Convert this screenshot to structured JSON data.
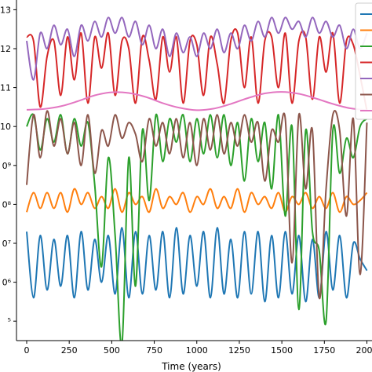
{
  "chart_data": {
    "type": "line",
    "xlabel": "Time (years)",
    "ylabel": "",
    "xlim": [
      -60,
      2030
    ],
    "ylim": [
      4.5,
      13.25
    ],
    "yscale": "log10",
    "grid": false,
    "legend_placement": "top-right (clipped)",
    "x_ticks": [
      0,
      250,
      500,
      750,
      1000,
      1250,
      1500,
      1750,
      2000
    ],
    "x_tick_labels": [
      "0",
      "250",
      "500",
      "750",
      "1000",
      "1250",
      "1500",
      "1750",
      "2000"
    ],
    "y_ticks": [
      5,
      6,
      7,
      8,
      9,
      10,
      11,
      12,
      13
    ],
    "y_tick_labels": [
      "⁵",
      "0⁶",
      "0⁷",
      "0⁸",
      "0⁹",
      "10",
      "11",
      "12",
      "13"
    ],
    "series": [
      {
        "color": "#1f77b4",
        "x": [
          0,
          40,
          80,
          120,
          160,
          200,
          240,
          280,
          320,
          360,
          400,
          440,
          480,
          520,
          560,
          600,
          640,
          680,
          720,
          760,
          800,
          840,
          880,
          920,
          960,
          1000,
          1040,
          1080,
          1120,
          1160,
          1200,
          1240,
          1280,
          1320,
          1360,
          1400,
          1440,
          1480,
          1520,
          1560,
          1600,
          1640,
          1680,
          1720,
          1760,
          1800,
          1840,
          1880,
          1920,
          1960,
          2000
        ],
        "values": [
          7.3,
          5.6,
          7.2,
          5.8,
          7.1,
          5.9,
          7.2,
          5.6,
          7.3,
          5.8,
          7.1,
          6.0,
          7.2,
          5.7,
          7.4,
          5.6,
          7.3,
          5.7,
          7.2,
          5.8,
          7.3,
          5.6,
          7.4,
          5.7,
          7.2,
          5.9,
          7.3,
          5.6,
          7.4,
          5.7,
          7.1,
          5.6,
          7.3,
          5.7,
          7.3,
          5.5,
          7.2,
          5.6,
          7.3,
          5.7,
          7.2,
          5.5,
          7.1,
          5.6,
          7.3,
          5.8,
          7.2,
          5.6,
          7.0,
          6.6,
          6.3
        ]
      },
      {
        "color": "#ff7f0e",
        "x": [
          0,
          40,
          80,
          120,
          160,
          200,
          240,
          280,
          320,
          360,
          400,
          440,
          480,
          520,
          560,
          600,
          640,
          680,
          720,
          760,
          800,
          840,
          880,
          920,
          960,
          1000,
          1040,
          1080,
          1120,
          1160,
          1200,
          1240,
          1280,
          1320,
          1360,
          1400,
          1440,
          1480,
          1520,
          1560,
          1600,
          1640,
          1680,
          1720,
          1760,
          1800,
          1840,
          1880,
          1920,
          1960,
          2000
        ],
        "values": [
          7.8,
          8.3,
          7.9,
          8.3,
          7.9,
          8.3,
          7.8,
          8.4,
          8.0,
          8.3,
          7.9,
          8.2,
          7.9,
          8.4,
          7.8,
          8.3,
          8.0,
          8.2,
          7.8,
          8.4,
          7.9,
          8.2,
          8.0,
          8.3,
          7.8,
          8.2,
          8.0,
          8.4,
          7.9,
          8.2,
          7.9,
          8.4,
          7.8,
          8.3,
          8.0,
          8.2,
          7.9,
          8.3,
          7.8,
          8.2,
          8.0,
          8.3,
          7.9,
          8.2,
          7.9,
          8.3,
          7.8,
          8.2,
          8.0,
          8.1,
          8.3
        ]
      },
      {
        "color": "#2ca02c",
        "x": [
          0,
          40,
          80,
          120,
          160,
          200,
          240,
          280,
          320,
          360,
          400,
          440,
          480,
          520,
          560,
          600,
          640,
          680,
          720,
          760,
          800,
          840,
          880,
          920,
          960,
          1000,
          1040,
          1080,
          1120,
          1160,
          1200,
          1240,
          1280,
          1320,
          1360,
          1400,
          1440,
          1480,
          1520,
          1560,
          1600,
          1640,
          1680,
          1720,
          1760,
          1800,
          1840,
          1880,
          1920,
          1960,
          2000
        ],
        "values": [
          10.0,
          10.3,
          9.4,
          10.2,
          9.6,
          10.3,
          9.3,
          10.2,
          9.5,
          10.1,
          8.5,
          6.4,
          9.2,
          7.2,
          4.4,
          9.2,
          5.9,
          9.9,
          8.1,
          10.3,
          9.1,
          10.2,
          9.6,
          10.3,
          9.1,
          10.2,
          9.3,
          10.3,
          9.2,
          10.3,
          9.0,
          10.1,
          8.6,
          10.2,
          9.1,
          10.1,
          8.4,
          10.3,
          7.7,
          10.0,
          5.3,
          9.9,
          7.3,
          6.8,
          5.0,
          9.9,
          8.8,
          9.7,
          9.2,
          10.0,
          10.2
        ]
      },
      {
        "color": "#d62728",
        "x": [
          0,
          40,
          80,
          120,
          160,
          200,
          240,
          280,
          320,
          360,
          400,
          440,
          480,
          520,
          560,
          600,
          640,
          680,
          720,
          760,
          800,
          840,
          880,
          920,
          960,
          1000,
          1040,
          1080,
          1120,
          1160,
          1200,
          1240,
          1280,
          1320,
          1360,
          1400,
          1440,
          1480,
          1520,
          1560,
          1600,
          1640,
          1680,
          1720,
          1760,
          1800,
          1840,
          1880,
          1920,
          1960,
          2000
        ],
        "values": [
          12.3,
          12.2,
          10.5,
          11.8,
          12.2,
          10.8,
          12.3,
          11.2,
          12.4,
          10.6,
          12.3,
          11.5,
          12.4,
          10.8,
          12.2,
          12.0,
          10.6,
          12.3,
          11.7,
          10.7,
          12.3,
          11.4,
          12.3,
          10.6,
          12.2,
          12.1,
          10.8,
          12.3,
          11.6,
          10.6,
          12.2,
          12.4,
          11.0,
          12.3,
          10.6,
          12.2,
          12.3,
          11.0,
          12.4,
          10.6,
          12.2,
          12.3,
          10.7,
          12.3,
          11.4,
          12.4,
          10.6,
          12.2,
          12.1,
          11.3,
          10.4
        ]
      },
      {
        "color": "#9467bd",
        "x": [
          0,
          40,
          80,
          120,
          160,
          200,
          240,
          280,
          320,
          360,
          400,
          440,
          480,
          520,
          560,
          600,
          640,
          680,
          720,
          760,
          800,
          840,
          880,
          920,
          960,
          1000,
          1040,
          1080,
          1120,
          1160,
          1200,
          1240,
          1280,
          1320,
          1360,
          1400,
          1440,
          1480,
          1520,
          1560,
          1600,
          1640,
          1680,
          1720,
          1760,
          1800,
          1840,
          1880,
          1920,
          1960,
          2000
        ],
        "values": [
          12.2,
          11.2,
          12.4,
          12.0,
          12.6,
          12.1,
          12.5,
          11.8,
          12.6,
          12.2,
          12.7,
          12.3,
          12.8,
          12.4,
          12.8,
          12.3,
          12.7,
          12.1,
          12.6,
          12.0,
          12.5,
          11.8,
          12.4,
          11.9,
          12.3,
          11.8,
          12.4,
          12.0,
          12.5,
          11.9,
          12.4,
          12.0,
          12.6,
          12.2,
          12.7,
          12.3,
          12.8,
          12.4,
          12.8,
          12.5,
          12.7,
          12.3,
          12.8,
          12.4,
          12.7,
          12.3,
          12.6,
          12.0,
          12.5,
          12.0,
          12.4
        ]
      },
      {
        "color": "#8c564b",
        "x": [
          0,
          40,
          80,
          120,
          160,
          200,
          240,
          280,
          320,
          360,
          400,
          440,
          480,
          520,
          560,
          600,
          640,
          680,
          720,
          760,
          800,
          840,
          880,
          920,
          960,
          1000,
          1040,
          1080,
          1120,
          1160,
          1200,
          1240,
          1280,
          1320,
          1360,
          1400,
          1440,
          1480,
          1520,
          1560,
          1600,
          1640,
          1680,
          1720,
          1760,
          1800,
          1840,
          1880,
          1920,
          1960,
          2000
        ],
        "values": [
          8.5,
          10.3,
          9.2,
          10.4,
          9.5,
          10.2,
          9.3,
          10.1,
          9.0,
          10.3,
          8.8,
          9.9,
          9.5,
          10.3,
          9.7,
          10.1,
          9.8,
          9.1,
          10.2,
          9.5,
          10.1,
          9.3,
          10.2,
          9.2,
          10.1,
          9.0,
          10.2,
          9.4,
          10.3,
          9.3,
          10.1,
          9.5,
          10.3,
          9.6,
          10.1,
          8.6,
          9.9,
          9.6,
          10.2,
          6.5,
          10.3,
          8.4,
          9.9,
          5.6,
          8.4,
          10.3,
          9.9,
          7.7,
          10.2,
          6.2,
          10.1
        ]
      },
      {
        "color": "#e377c2",
        "x": [
          0,
          100,
          200,
          300,
          400,
          500,
          600,
          700,
          800,
          900,
          1000,
          1100,
          1200,
          1300,
          1400,
          1500,
          1600,
          1700,
          1800,
          1900,
          2000
        ],
        "values": [
          10.43,
          10.45,
          10.52,
          10.65,
          10.8,
          10.88,
          10.86,
          10.76,
          10.6,
          10.48,
          10.42,
          10.46,
          10.58,
          10.73,
          10.85,
          10.89,
          10.84,
          10.72,
          10.58,
          10.47,
          10.42
        ]
      }
    ],
    "legend_entries_visible": 7
  }
}
